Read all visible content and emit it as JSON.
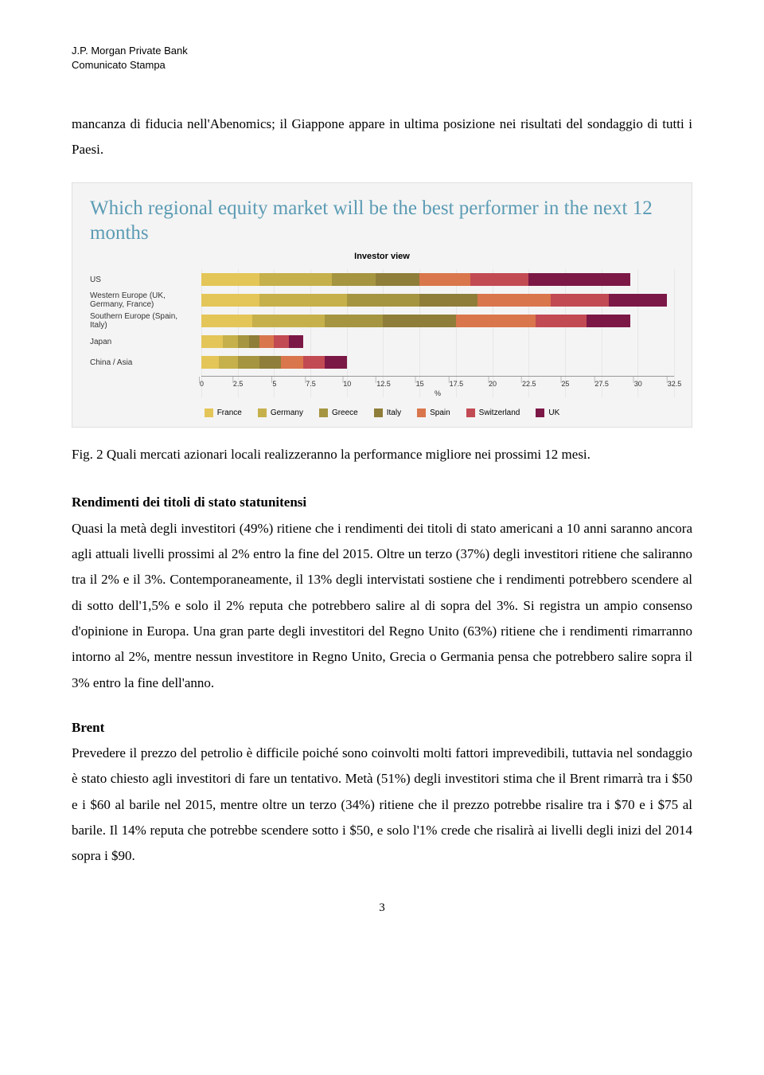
{
  "header": {
    "line1": "J.P. Morgan Private Bank",
    "line2": "Comunicato Stampa"
  },
  "intro": "mancanza di fiducia nell'Abenomics; il Giappone appare in ultima posizione nei risultati del sondaggio di tutti i Paesi.",
  "chart": {
    "title": "Which regional equity market will be the best performer in the next 12 months",
    "subtitle": "Investor view",
    "xAxisLabel": "%",
    "xMax": 32.5,
    "ticks": [
      "0",
      "2.5",
      "5",
      "7.5",
      "10",
      "12.5",
      "15",
      "17.5",
      "20",
      "22.5",
      "25",
      "27.5",
      "30",
      "32.5"
    ],
    "colors": {
      "France": "#e4c558",
      "Germany": "#c6b04b",
      "Greece": "#a59540",
      "Italy": "#8f7e39",
      "Spain": "#d9764c",
      "Switzerland": "#c24a53",
      "UK": "#7c1846"
    },
    "rows": [
      {
        "label": "US",
        "stack": [
          {
            "c": "France",
            "v": 4
          },
          {
            "c": "Germany",
            "v": 5
          },
          {
            "c": "Greece",
            "v": 3
          },
          {
            "c": "Italy",
            "v": 3
          },
          {
            "c": "Spain",
            "v": 3.5
          },
          {
            "c": "Switzerland",
            "v": 4
          },
          {
            "c": "UK",
            "v": 7
          }
        ]
      },
      {
        "label": "Western Europe (UK, Germany, France)",
        "stack": [
          {
            "c": "France",
            "v": 4
          },
          {
            "c": "Germany",
            "v": 6
          },
          {
            "c": "Greece",
            "v": 5
          },
          {
            "c": "Italy",
            "v": 4
          },
          {
            "c": "Spain",
            "v": 5
          },
          {
            "c": "Switzerland",
            "v": 4
          },
          {
            "c": "UK",
            "v": 4
          }
        ]
      },
      {
        "label": "Southern Europe (Spain, Italy)",
        "stack": [
          {
            "c": "France",
            "v": 3.5
          },
          {
            "c": "Germany",
            "v": 5
          },
          {
            "c": "Greece",
            "v": 4
          },
          {
            "c": "Italy",
            "v": 5
          },
          {
            "c": "Spain",
            "v": 5.5
          },
          {
            "c": "Switzerland",
            "v": 3.5
          },
          {
            "c": "UK",
            "v": 3
          }
        ]
      },
      {
        "label": "Japan",
        "stack": [
          {
            "c": "France",
            "v": 1.5
          },
          {
            "c": "Germany",
            "v": 1
          },
          {
            "c": "Greece",
            "v": 0.8
          },
          {
            "c": "Italy",
            "v": 0.7
          },
          {
            "c": "Spain",
            "v": 1
          },
          {
            "c": "Switzerland",
            "v": 1
          },
          {
            "c": "UK",
            "v": 1
          }
        ]
      },
      {
        "label": "China / Asia",
        "stack": [
          {
            "c": "France",
            "v": 1.2
          },
          {
            "c": "Germany",
            "v": 1.3
          },
          {
            "c": "Greece",
            "v": 1.5
          },
          {
            "c": "Italy",
            "v": 1.5
          },
          {
            "c": "Spain",
            "v": 1.5
          },
          {
            "c": "Switzerland",
            "v": 1.5
          },
          {
            "c": "UK",
            "v": 1.5
          }
        ]
      }
    ],
    "legend": [
      "France",
      "Germany",
      "Greece",
      "Italy",
      "Spain",
      "Switzerland",
      "UK"
    ]
  },
  "caption": "Fig. 2 Quali mercati azionari locali realizzeranno la performance migliore nei prossimi 12 mesi.",
  "sec1": {
    "title": "Rendimenti dei titoli di stato statunitensi",
    "body": "Quasi la metà degli investitori (49%) ritiene che i rendimenti dei titoli di stato americani a 10 anni saranno ancora agli attuali livelli prossimi al 2% entro la fine del 2015. Oltre un terzo (37%) degli investitori ritiene che saliranno tra il 2% e il 3%. Contemporaneamente, il 13% degli intervistati sostiene che i rendimenti potrebbero scendere al di sotto dell'1,5% e solo il 2% reputa che potrebbero salire al di sopra del 3%. Si registra un ampio consenso d'opinione in Europa. Una gran parte degli investitori del Regno Unito (63%) ritiene che i rendimenti rimarranno intorno al 2%, mentre nessun investitore in Regno Unito, Grecia o Germania pensa che potrebbero salire sopra il  3% entro la fine dell'anno."
  },
  "sec2": {
    "title": "Brent",
    "body": "Prevedere il prezzo del petrolio è difficile poiché sono coinvolti molti fattori imprevedibili, tuttavia nel sondaggio è stato chiesto agli investitori di fare un tentativo. Metà (51%) degli investitori stima che il Brent rimarrà tra i $50 e i $60 al barile nel 2015, mentre oltre un terzo (34%) ritiene che il prezzo potrebbe risalire tra i $70 e i $75 al barile. Il 14% reputa che potrebbe scendere sotto i $50, e solo l'1% crede che risalirà ai livelli degli inizi del 2014 sopra i $90."
  },
  "pageNumber": "3"
}
